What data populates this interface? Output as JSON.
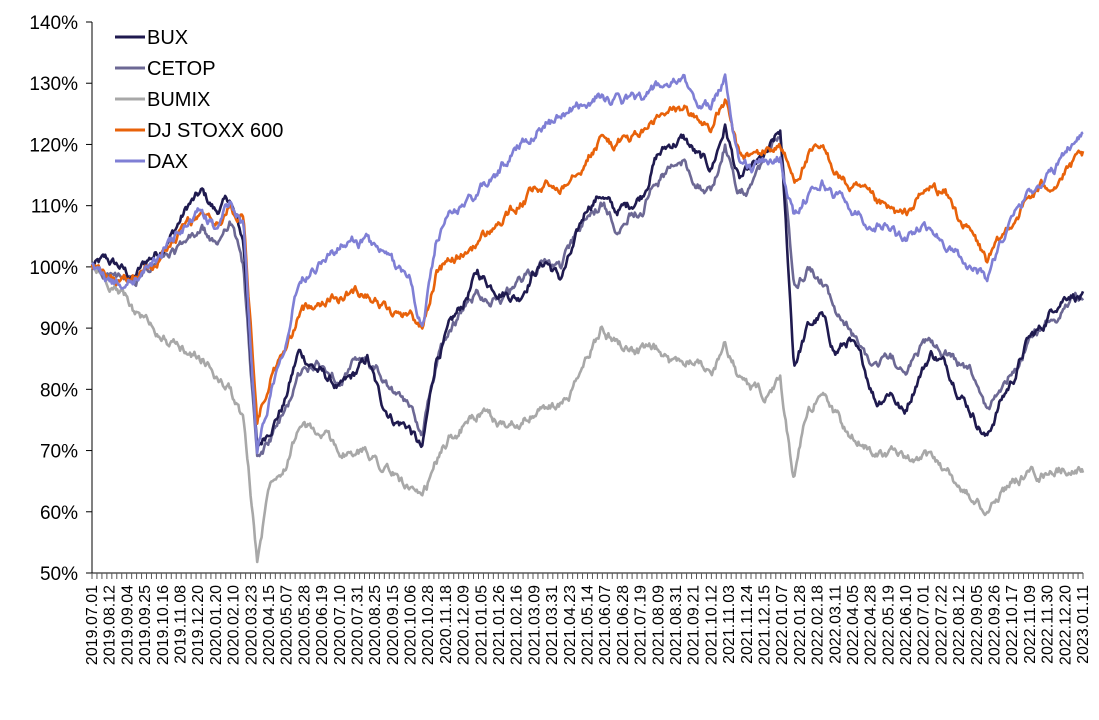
{
  "chart_data": {
    "type": "line",
    "title": "",
    "xlabel": "",
    "ylabel": "",
    "ylim": [
      50,
      140
    ],
    "y_ticks": [
      "50%",
      "60%",
      "70%",
      "80%",
      "90%",
      "100%",
      "110%",
      "120%",
      "130%",
      "140%"
    ],
    "grid": false,
    "legend_position": "top-left",
    "x_tick_labels": [
      "2019.07.01",
      "2019.08.12",
      "2019.09.04",
      "2019.09.25",
      "2019.10.16",
      "2019.11.08",
      "2019.12.20",
      "2020.01.20",
      "2020.02.10",
      "2020.03.23",
      "2020.04.15",
      "2020.05.07",
      "2020.05.28",
      "2020.06.19",
      "2020.07.10",
      "2020.07.31",
      "2020.08.25",
      "2020.09.15",
      "2020.10.06",
      "2020.10.28",
      "2020.11.18",
      "2020.12.09",
      "2021.01.05",
      "2021.01.26",
      "2021.02.16",
      "2021.03.09",
      "2021.03.31",
      "2021.04.23",
      "2021.05.14",
      "2021.06.07",
      "2021.06.28",
      "2021.07.19",
      "2021.08.09",
      "2021.08.31",
      "2021.09.21",
      "2021.10.12",
      "2021.11.03",
      "2021.11.24",
      "2021.12.15",
      "2022.01.07",
      "2022.01.28",
      "2022.02.18",
      "2022.03.11",
      "2022.04.05",
      "2022.04.28",
      "2022.05.19",
      "2022.06.10",
      "2022.07.01",
      "2022.07.22",
      "2022.08.12",
      "2022.09.05",
      "2022.09.26",
      "2022.10.17",
      "2022.11.09",
      "2022.11.30",
      "2022.12.20",
      "2023.01.11"
    ],
    "series": [
      {
        "name": "BUX",
        "color": "#1f1a4f",
        "values": [
          100,
          101,
          100,
          98,
          101,
          103,
          106,
          110,
          112,
          109,
          111,
          104,
          70,
          74,
          78,
          86,
          84,
          82,
          80,
          82,
          85,
          78,
          75,
          74,
          70,
          85,
          90,
          94,
          99,
          97,
          96,
          95,
          99,
          101,
          98,
          103,
          110,
          112,
          109,
          110,
          112,
          118,
          120,
          121,
          118,
          116,
          123,
          114,
          116,
          118,
          122,
          84,
          90,
          92,
          86,
          88,
          84,
          78,
          80,
          76,
          82,
          86,
          84,
          80,
          76,
          72,
          78,
          82,
          88,
          90,
          94,
          96,
          95
        ]
      },
      {
        "name": "CETOP",
        "color": "#6c6894",
        "values": [
          100,
          99,
          98,
          97,
          99,
          101,
          102,
          104,
          106,
          103,
          108,
          100,
          68,
          72,
          76,
          82,
          84,
          83,
          82,
          84,
          84,
          82,
          79,
          77,
          73,
          84,
          90,
          93,
          96,
          95,
          95,
          97,
          99,
          101,
          100,
          104,
          108,
          110,
          107,
          109,
          110,
          114,
          116,
          117,
          114,
          112,
          120,
          112,
          113,
          118,
          122,
          96,
          100,
          98,
          92,
          90,
          86,
          84,
          86,
          82,
          86,
          88,
          86,
          84,
          82,
          76,
          80,
          84,
          88,
          90,
          92,
          95,
          96
        ]
      },
      {
        "name": "BUMIX",
        "color": "#a8a8a8",
        "values": [
          100,
          98,
          96,
          93,
          91,
          89,
          87,
          86,
          85,
          82,
          80,
          75,
          52,
          66,
          68,
          74,
          73,
          72,
          70,
          69,
          70,
          68,
          66,
          64,
          61,
          68,
          72,
          74,
          76,
          75,
          74,
          75,
          76,
          77,
          77,
          80,
          85,
          90,
          88,
          87,
          86,
          86,
          84,
          85,
          86,
          82,
          88,
          82,
          80,
          79,
          81,
          65,
          76,
          80,
          76,
          72,
          71,
          70,
          70,
          68,
          68,
          69,
          67,
          64,
          62,
          60,
          63,
          65,
          66,
          66,
          67,
          67,
          67
        ]
      },
      {
        "name": "DJ STOXX 600",
        "color": "#e8620a",
        "values": [
          100,
          98,
          97,
          98,
          100,
          102,
          104,
          107,
          108,
          106,
          110,
          108,
          75,
          82,
          86,
          92,
          94,
          95,
          95,
          96,
          96,
          94,
          92,
          93,
          90,
          99,
          101,
          102,
          104,
          106,
          108,
          110,
          112,
          113,
          113,
          116,
          118,
          121,
          120,
          121,
          122,
          124,
          125,
          126,
          124,
          123,
          127,
          118,
          118,
          119,
          120,
          114,
          118,
          119,
          116,
          113,
          112,
          110,
          109,
          108,
          111,
          113,
          112,
          108,
          105,
          101,
          104,
          108,
          111,
          113,
          114,
          116,
          118
        ]
      },
      {
        "name": "DAX",
        "color": "#7f7fd5",
        "values": [
          100,
          98,
          97,
          98,
          100,
          102,
          105,
          107,
          109,
          106,
          110,
          107,
          70,
          80,
          88,
          98,
          100,
          102,
          103,
          104,
          104,
          102,
          100,
          99,
          90,
          104,
          108,
          110,
          112,
          114,
          117,
          120,
          122,
          124,
          124,
          126,
          127,
          128,
          127,
          127,
          128,
          129,
          130,
          130,
          127,
          126,
          131,
          118,
          116,
          117,
          118,
          108,
          112,
          114,
          112,
          110,
          108,
          107,
          107,
          104,
          106,
          106,
          104,
          102,
          100,
          98,
          104,
          108,
          112,
          114,
          116,
          120,
          122
        ]
      }
    ]
  }
}
